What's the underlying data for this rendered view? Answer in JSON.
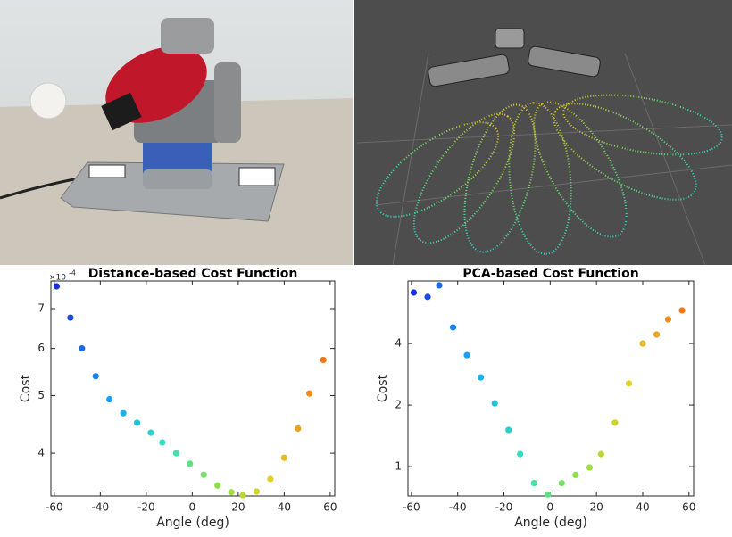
{
  "chart_data": [
    {
      "type": "scatter",
      "title": "Distance-based Cost Function",
      "x_label": "Angle (deg)",
      "y_label": "Cost",
      "y_scale_base": "×10",
      "y_scale_exponent": "-4",
      "ylog": true,
      "x": [
        -59,
        -53,
        -48,
        -42,
        -36,
        -30,
        -24,
        -18,
        -13,
        -7,
        -1,
        5,
        11,
        17,
        22,
        28,
        34,
        40,
        46,
        51,
        57
      ],
      "values": [
        7.63,
        6.76,
        6.0,
        5.39,
        4.93,
        4.67,
        4.5,
        4.33,
        4.17,
        4.0,
        3.84,
        3.68,
        3.53,
        3.44,
        3.4,
        3.45,
        3.62,
        3.93,
        4.4,
        5.04,
        5.74
      ],
      "colormap": [
        "#1a2fe0",
        "#1aa0f0",
        "#2ee0c0",
        "#8ee048",
        "#e0d020",
        "#f07818"
      ],
      "xlim": [
        -61.5,
        62
      ],
      "ylim": [
        3.39,
        7.79
      ],
      "xticks": [
        -60,
        -40,
        -20,
        0,
        20,
        40,
        60
      ],
      "yticks": [
        4,
        5,
        6,
        7
      ]
    },
    {
      "type": "scatter",
      "title": "PCA-based Cost Function",
      "x_label": "Angle (deg)",
      "y_label": "Cost",
      "ylog": true,
      "x": [
        -59,
        -53,
        -48,
        -42,
        -36,
        -30,
        -24,
        -18,
        -13,
        -7,
        -1,
        5,
        11,
        17,
        22,
        28,
        34,
        40,
        46,
        51,
        57
      ],
      "values": [
        7.1,
        6.76,
        7.7,
        4.8,
        3.51,
        2.73,
        2.04,
        1.51,
        1.15,
        0.83,
        0.73,
        0.83,
        0.91,
        0.99,
        1.15,
        1.64,
        2.55,
        4.0,
        4.43,
        5.25,
        5.81
      ],
      "colormap": [
        "#1a2fe0",
        "#1aa0f0",
        "#2ee0c0",
        "#8ee048",
        "#e0d020",
        "#f07818"
      ],
      "xlim": [
        -61.5,
        62
      ],
      "ylim": [
        0.718,
        8.09
      ],
      "xticks": [
        -60,
        -40,
        -20,
        0,
        20,
        40,
        60
      ],
      "yticks": [
        1,
        2,
        4
      ]
    }
  ]
}
